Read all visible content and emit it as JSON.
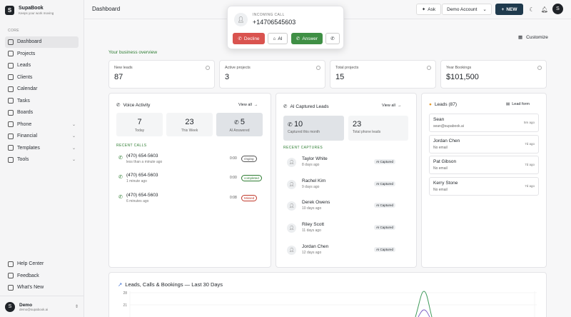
{
  "brand": {
    "name": "SupaBook",
    "tagline": "Keeps your work moving",
    "logo": "S"
  },
  "sidebar": {
    "section": "CORE",
    "items": [
      {
        "label": "Dashboard",
        "icon": "dashboard-icon",
        "active": true
      },
      {
        "label": "Projects",
        "icon": "folder-icon"
      },
      {
        "label": "Leads",
        "icon": "leads-icon"
      },
      {
        "label": "Clients",
        "icon": "clients-icon"
      },
      {
        "label": "Calendar",
        "icon": "calendar-icon"
      },
      {
        "label": "Tasks",
        "icon": "tasks-icon"
      },
      {
        "label": "Boards",
        "icon": "boards-icon"
      },
      {
        "label": "Phone",
        "icon": "phone-icon",
        "expandable": true
      },
      {
        "label": "Financial",
        "icon": "financial-icon",
        "expandable": true
      },
      {
        "label": "Templates",
        "icon": "templates-icon",
        "expandable": true
      },
      {
        "label": "Tools",
        "icon": "tools-icon",
        "expandable": true
      }
    ],
    "bottom": [
      {
        "label": "Help Center",
        "icon": "help-icon"
      },
      {
        "label": "Feedback",
        "icon": "feedback-icon"
      },
      {
        "label": "What's New",
        "icon": "sparkle-icon"
      }
    ],
    "user": {
      "name": "Demo",
      "email": "demo@supabook.ai",
      "initial": "S"
    }
  },
  "topbar": {
    "title": "Dashboard",
    "ask_label": "Ask",
    "account_label": "Demo Account",
    "new_label": "NEW",
    "avatar_initial": "S"
  },
  "customize_label": "Customize",
  "overview_label": "Your business overview",
  "stats": [
    {
      "label": "New leads",
      "value": "87"
    },
    {
      "label": "Active projects",
      "value": "3"
    },
    {
      "label": "Total projects",
      "value": "15"
    },
    {
      "label": "Year Bookings",
      "value": "$101,500"
    }
  ],
  "voice": {
    "title": "Voice Activity",
    "view_all": "View all",
    "tiles": [
      {
        "value": "7",
        "label": "Today"
      },
      {
        "value": "23",
        "label": "This Week"
      },
      {
        "value": "5",
        "label": "AI Answered"
      }
    ],
    "recent_label": "RECENT CALLS",
    "calls": [
      {
        "number": "(470) 654-5603",
        "time": "less than a minute ago",
        "duration": "0:00",
        "status": "ringing"
      },
      {
        "number": "(470) 654-5603",
        "time": "1 minute ago",
        "duration": "0:00",
        "status": "completed"
      },
      {
        "number": "(470) 654-5603",
        "time": "6 minutes ago",
        "duration": "0:08",
        "status": "Missed"
      }
    ]
  },
  "ai_leads": {
    "title": "AI Captured Leads",
    "view_all": "View all",
    "tiles": [
      {
        "value": "10",
        "label": "Captured this month"
      },
      {
        "value": "23",
        "label": "Total phone leads"
      }
    ],
    "recent_label": "RECENT CAPTURES",
    "captures": [
      {
        "name": "Taylor White",
        "age": "8 days ago",
        "badge": "AI Captured"
      },
      {
        "name": "Rachel Kim",
        "age": "9 days ago",
        "badge": "AI Captured"
      },
      {
        "name": "Derek Owens",
        "age": "10 days ago",
        "badge": "AI Captured"
      },
      {
        "name": "Riley Scott",
        "age": "11 days ago",
        "badge": "AI Captured"
      },
      {
        "name": "Jordan Chen",
        "age": "12 days ago",
        "badge": "AI Captured"
      }
    ]
  },
  "leads": {
    "title": "Leads (87)",
    "form_label": "Lead form",
    "items": [
      {
        "name": "Sean",
        "email": "sean@supabook.ai",
        "age": "5m ago"
      },
      {
        "name": "Jordan Chen",
        "email": "No email",
        "age": "7d ago"
      },
      {
        "name": "Pat Gibson",
        "email": "No email",
        "age": "7d ago"
      },
      {
        "name": "Kerry Stone",
        "email": "No email",
        "age": "7d ago"
      }
    ]
  },
  "chart": {
    "title": "Leads, Calls & Bookings — Last 30 Days",
    "ticks": [
      "28",
      "21"
    ]
  },
  "incoming_call": {
    "label": "INCOMING CALL",
    "number": "+14706545603",
    "decline": "Decline",
    "ai": "AI",
    "answer": "Answer"
  },
  "colors": {
    "accent": "#1f3a4d",
    "green": "#2e7d32",
    "decline": "#d9534f",
    "answer": "#3f8f45"
  }
}
